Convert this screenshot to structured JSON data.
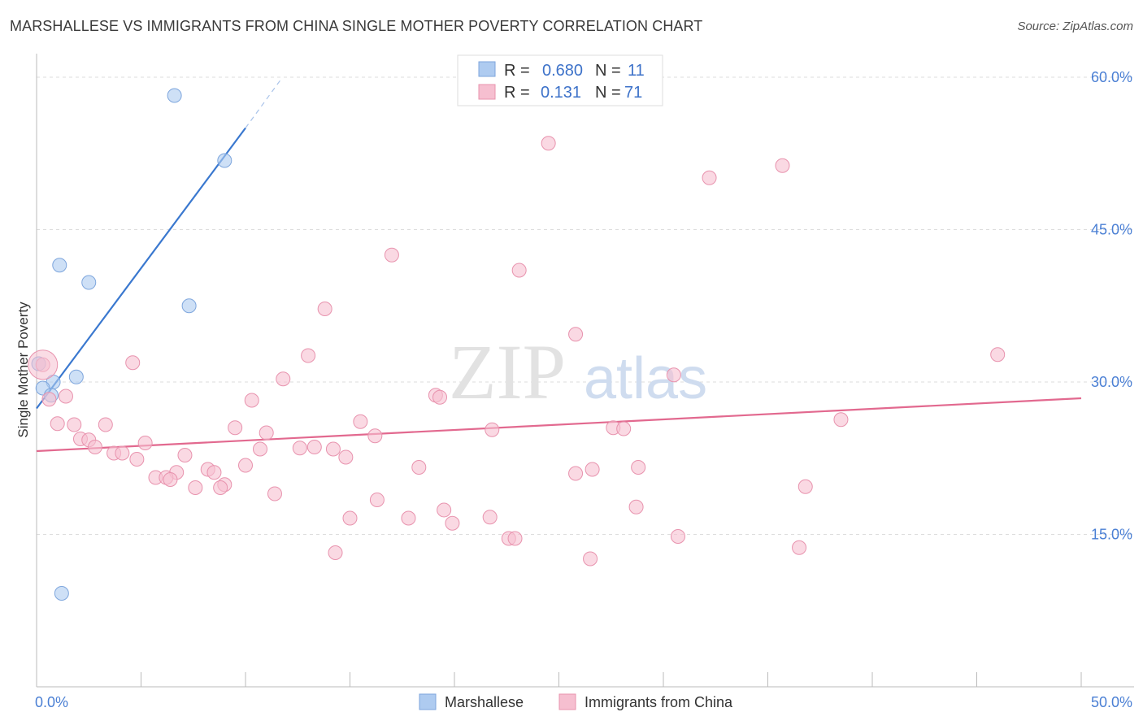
{
  "title": "MARSHALLESE VS IMMIGRANTS FROM CHINA SINGLE MOTHER POVERTY CORRELATION CHART",
  "source": "Source: ZipAtlas.com",
  "watermark": {
    "zip": "ZIP",
    "atlas": "atlas"
  },
  "legend": {
    "rows": [
      {
        "r_label": "R =",
        "r_value": "0.680",
        "n_label": "N =",
        "n_value": "11",
        "color": "#aecbf0",
        "stroke": "#7ea6dd"
      },
      {
        "r_label": "R =",
        "r_value": "0.131",
        "n_label": "N =",
        "n_value": "71",
        "color": "#f6bfd0",
        "stroke": "#e893ae"
      }
    ]
  },
  "bottom_legend": [
    {
      "label": "Marshallese",
      "color": "#aecbf0",
      "stroke": "#7ea6dd"
    },
    {
      "label": "Immigrants from China",
      "color": "#f6bfd0",
      "stroke": "#e893ae"
    }
  ],
  "chart_data": {
    "type": "scatter",
    "title": "MARSHALLESE VS IMMIGRANTS FROM CHINA SINGLE MOTHER POVERTY CORRELATION CHART",
    "xlabel": "",
    "ylabel": "Single Mother Poverty",
    "xlim": [
      0,
      50
    ],
    "ylim": [
      0,
      62
    ],
    "x_tick_labels": [
      {
        "value": 0,
        "label": "0.0%"
      },
      {
        "value": 50,
        "label": "50.0%"
      }
    ],
    "y_tick_labels": [
      {
        "value": 15,
        "label": "15.0%"
      },
      {
        "value": 30,
        "label": "30.0%"
      },
      {
        "value": 45,
        "label": "45.0%"
      },
      {
        "value": 60,
        "label": "60.0%"
      }
    ],
    "grid": true,
    "legend_position": "top-center",
    "series": [
      {
        "name": "Marshallese",
        "color": "#aecbf0",
        "stroke": "#7ea6dd",
        "trend_color": "#3a78cf",
        "trend": {
          "x0": 0,
          "y0": 27.4,
          "x1": 10,
          "y1": 55.0,
          "dash_to_x": 11.7,
          "dash_to_y": 59.8
        },
        "points": [
          {
            "x": 6.6,
            "y": 58.2
          },
          {
            "x": 9.0,
            "y": 51.8
          },
          {
            "x": 1.1,
            "y": 41.5
          },
          {
            "x": 2.5,
            "y": 39.8
          },
          {
            "x": 7.3,
            "y": 37.5
          },
          {
            "x": 0.1,
            "y": 31.8
          },
          {
            "x": 1.9,
            "y": 30.5
          },
          {
            "x": 0.8,
            "y": 30.0
          },
          {
            "x": 0.3,
            "y": 29.4
          },
          {
            "x": 0.7,
            "y": 28.7
          },
          {
            "x": 1.2,
            "y": 9.2
          }
        ]
      },
      {
        "name": "Immigrants from China",
        "color": "#f6bfd0",
        "stroke": "#e893ae",
        "trend_color": "#e2698f",
        "trend": {
          "x0": 0,
          "y0": 23.2,
          "x1": 50,
          "y1": 28.4
        },
        "points": [
          {
            "x": 24.5,
            "y": 53.5
          },
          {
            "x": 35.7,
            "y": 51.3
          },
          {
            "x": 32.2,
            "y": 50.1
          },
          {
            "x": 17.0,
            "y": 42.5
          },
          {
            "x": 23.1,
            "y": 41.0
          },
          {
            "x": 13.8,
            "y": 37.2
          },
          {
            "x": 25.8,
            "y": 34.7
          },
          {
            "x": 46.0,
            "y": 32.7
          },
          {
            "x": 13.0,
            "y": 32.6
          },
          {
            "x": 4.6,
            "y": 31.9
          },
          {
            "x": 0.3,
            "y": 31.7
          },
          {
            "x": 30.5,
            "y": 30.7
          },
          {
            "x": 11.8,
            "y": 30.3
          },
          {
            "x": 19.1,
            "y": 28.7
          },
          {
            "x": 19.3,
            "y": 28.5
          },
          {
            "x": 1.4,
            "y": 28.6
          },
          {
            "x": 0.6,
            "y": 28.3
          },
          {
            "x": 10.3,
            "y": 28.2
          },
          {
            "x": 38.5,
            "y": 26.3
          },
          {
            "x": 1.0,
            "y": 25.9
          },
          {
            "x": 1.8,
            "y": 25.8
          },
          {
            "x": 3.3,
            "y": 25.8
          },
          {
            "x": 15.5,
            "y": 26.1
          },
          {
            "x": 9.5,
            "y": 25.5
          },
          {
            "x": 21.8,
            "y": 25.3
          },
          {
            "x": 27.6,
            "y": 25.5
          },
          {
            "x": 28.1,
            "y": 25.4
          },
          {
            "x": 11.0,
            "y": 25.0
          },
          {
            "x": 16.2,
            "y": 24.7
          },
          {
            "x": 2.1,
            "y": 24.4
          },
          {
            "x": 2.5,
            "y": 24.3
          },
          {
            "x": 5.2,
            "y": 24.0
          },
          {
            "x": 2.8,
            "y": 23.6
          },
          {
            "x": 12.6,
            "y": 23.5
          },
          {
            "x": 13.3,
            "y": 23.6
          },
          {
            "x": 14.2,
            "y": 23.4
          },
          {
            "x": 10.7,
            "y": 23.4
          },
          {
            "x": 3.7,
            "y": 23.0
          },
          {
            "x": 4.1,
            "y": 23.0
          },
          {
            "x": 4.8,
            "y": 22.4
          },
          {
            "x": 7.1,
            "y": 22.8
          },
          {
            "x": 14.8,
            "y": 22.6
          },
          {
            "x": 18.3,
            "y": 21.6
          },
          {
            "x": 28.8,
            "y": 21.6
          },
          {
            "x": 10.0,
            "y": 21.8
          },
          {
            "x": 26.6,
            "y": 21.4
          },
          {
            "x": 8.2,
            "y": 21.4
          },
          {
            "x": 8.5,
            "y": 21.1
          },
          {
            "x": 6.7,
            "y": 21.1
          },
          {
            "x": 25.8,
            "y": 21.0
          },
          {
            "x": 5.7,
            "y": 20.6
          },
          {
            "x": 6.2,
            "y": 20.6
          },
          {
            "x": 6.4,
            "y": 20.4
          },
          {
            "x": 9.0,
            "y": 19.9
          },
          {
            "x": 7.6,
            "y": 19.6
          },
          {
            "x": 8.8,
            "y": 19.6
          },
          {
            "x": 36.8,
            "y": 19.7
          },
          {
            "x": 11.4,
            "y": 19.0
          },
          {
            "x": 16.3,
            "y": 18.4
          },
          {
            "x": 28.7,
            "y": 17.7
          },
          {
            "x": 19.5,
            "y": 17.4
          },
          {
            "x": 15.0,
            "y": 16.6
          },
          {
            "x": 17.8,
            "y": 16.6
          },
          {
            "x": 21.7,
            "y": 16.7
          },
          {
            "x": 19.9,
            "y": 16.1
          },
          {
            "x": 22.6,
            "y": 14.6
          },
          {
            "x": 22.9,
            "y": 14.6
          },
          {
            "x": 30.7,
            "y": 14.8
          },
          {
            "x": 36.5,
            "y": 13.7
          },
          {
            "x": 14.3,
            "y": 13.2
          },
          {
            "x": 26.5,
            "y": 12.6
          }
        ]
      }
    ]
  }
}
